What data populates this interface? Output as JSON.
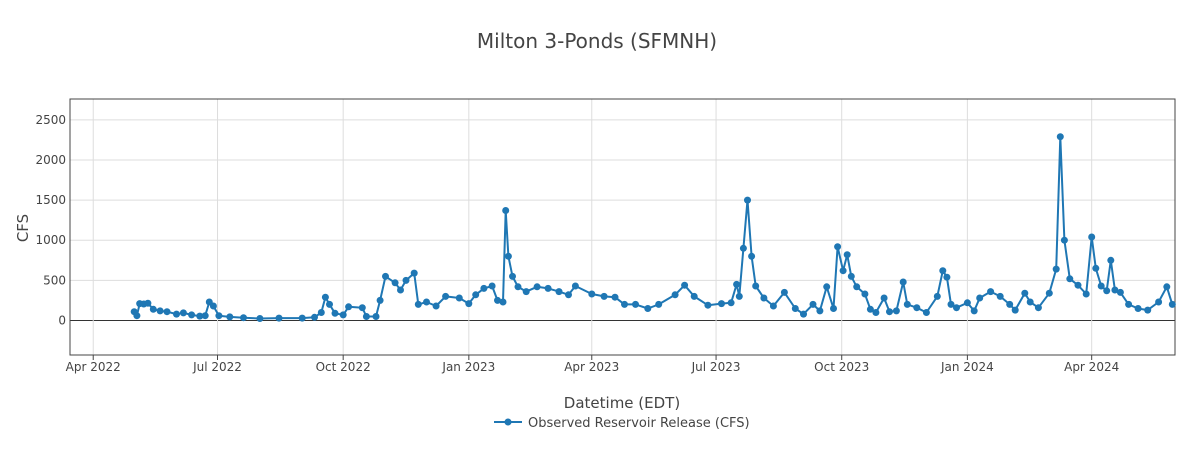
{
  "chart_data": {
    "type": "line",
    "title": "Milton 3-Ponds (SFMNH)",
    "xlabel": "Datetime (EDT)",
    "ylabel": "CFS",
    "x_ticks": [
      "Apr 2022",
      "Jul 2022",
      "Oct 2022",
      "Jan 2023",
      "Apr 2023",
      "Jul 2023",
      "Oct 2023",
      "Jan 2024",
      "Apr 2024"
    ],
    "y_ticks": [
      "0",
      "500",
      "1000",
      "1500",
      "2000",
      "2500"
    ],
    "xlim": [
      "2022-03-15",
      "2024-06-01"
    ],
    "ylim": [
      -430,
      2760
    ],
    "grid": true,
    "legend_position": "bottom-center",
    "colors": {
      "series": "#1f77b4",
      "grid": "#dddddd",
      "zero_line": "#333333",
      "frame": "#444444",
      "text": "#444444"
    },
    "series": [
      {
        "name": "Observed Reservoir Release (CFS)",
        "marker": "circle",
        "points": [
          [
            "2022-05-01",
            110
          ],
          [
            "2022-05-03",
            60
          ],
          [
            "2022-05-05",
            210
          ],
          [
            "2022-05-08",
            205
          ],
          [
            "2022-05-11",
            215
          ],
          [
            "2022-05-15",
            140
          ],
          [
            "2022-05-20",
            120
          ],
          [
            "2022-05-25",
            110
          ],
          [
            "2022-06-01",
            80
          ],
          [
            "2022-06-06",
            95
          ],
          [
            "2022-06-12",
            70
          ],
          [
            "2022-06-18",
            55
          ],
          [
            "2022-06-22",
            60
          ],
          [
            "2022-06-25",
            230
          ],
          [
            "2022-06-28",
            180
          ],
          [
            "2022-07-02",
            60
          ],
          [
            "2022-07-10",
            45
          ],
          [
            "2022-07-20",
            35
          ],
          [
            "2022-08-01",
            25
          ],
          [
            "2022-08-15",
            30
          ],
          [
            "2022-09-01",
            30
          ],
          [
            "2022-09-10",
            40
          ],
          [
            "2022-09-15",
            100
          ],
          [
            "2022-09-18",
            290
          ],
          [
            "2022-09-21",
            200
          ],
          [
            "2022-09-25",
            90
          ],
          [
            "2022-10-01",
            70
          ],
          [
            "2022-10-05",
            170
          ],
          [
            "2022-10-15",
            160
          ],
          [
            "2022-10-18",
            50
          ],
          [
            "2022-10-25",
            50
          ],
          [
            "2022-10-28",
            250
          ],
          [
            "2022-11-01",
            550
          ],
          [
            "2022-11-08",
            470
          ],
          [
            "2022-11-12",
            380
          ],
          [
            "2022-11-16",
            500
          ],
          [
            "2022-11-22",
            590
          ],
          [
            "2022-11-25",
            200
          ],
          [
            "2022-12-01",
            230
          ],
          [
            "2022-12-08",
            180
          ],
          [
            "2022-12-15",
            300
          ],
          [
            "2022-12-25",
            280
          ],
          [
            "2023-01-01",
            210
          ],
          [
            "2023-01-06",
            320
          ],
          [
            "2023-01-12",
            400
          ],
          [
            "2023-01-18",
            430
          ],
          [
            "2023-01-22",
            250
          ],
          [
            "2023-01-26",
            230
          ],
          [
            "2023-01-28",
            1370
          ],
          [
            "2023-01-30",
            800
          ],
          [
            "2023-02-02",
            550
          ],
          [
            "2023-02-06",
            420
          ],
          [
            "2023-02-12",
            360
          ],
          [
            "2023-02-20",
            420
          ],
          [
            "2023-02-28",
            400
          ],
          [
            "2023-03-08",
            360
          ],
          [
            "2023-03-15",
            320
          ],
          [
            "2023-03-20",
            430
          ],
          [
            "2023-04-01",
            330
          ],
          [
            "2023-04-10",
            300
          ],
          [
            "2023-04-18",
            290
          ],
          [
            "2023-04-25",
            200
          ],
          [
            "2023-05-03",
            200
          ],
          [
            "2023-05-12",
            150
          ],
          [
            "2023-05-20",
            200
          ],
          [
            "2023-06-01",
            320
          ],
          [
            "2023-06-08",
            440
          ],
          [
            "2023-06-15",
            300
          ],
          [
            "2023-06-25",
            190
          ],
          [
            "2023-07-05",
            210
          ],
          [
            "2023-07-12",
            220
          ],
          [
            "2023-07-16",
            450
          ],
          [
            "2023-07-18",
            300
          ],
          [
            "2023-07-21",
            900
          ],
          [
            "2023-07-24",
            1500
          ],
          [
            "2023-07-27",
            800
          ],
          [
            "2023-07-30",
            430
          ],
          [
            "2023-08-05",
            280
          ],
          [
            "2023-08-12",
            180
          ],
          [
            "2023-08-20",
            350
          ],
          [
            "2023-08-28",
            150
          ],
          [
            "2023-09-03",
            80
          ],
          [
            "2023-09-10",
            200
          ],
          [
            "2023-09-15",
            120
          ],
          [
            "2023-09-20",
            420
          ],
          [
            "2023-09-25",
            150
          ],
          [
            "2023-09-28",
            920
          ],
          [
            "2023-10-02",
            620
          ],
          [
            "2023-10-05",
            820
          ],
          [
            "2023-10-08",
            550
          ],
          [
            "2023-10-12",
            420
          ],
          [
            "2023-10-18",
            330
          ],
          [
            "2023-10-22",
            140
          ],
          [
            "2023-10-26",
            100
          ],
          [
            "2023-11-01",
            280
          ],
          [
            "2023-11-05",
            110
          ],
          [
            "2023-11-10",
            120
          ],
          [
            "2023-11-15",
            480
          ],
          [
            "2023-11-18",
            200
          ],
          [
            "2023-11-25",
            160
          ],
          [
            "2023-12-02",
            100
          ],
          [
            "2023-12-10",
            300
          ],
          [
            "2023-12-14",
            620
          ],
          [
            "2023-12-17",
            540
          ],
          [
            "2023-12-20",
            200
          ],
          [
            "2023-12-24",
            160
          ],
          [
            "2024-01-01",
            220
          ],
          [
            "2024-01-06",
            120
          ],
          [
            "2024-01-10",
            280
          ],
          [
            "2024-01-18",
            360
          ],
          [
            "2024-01-25",
            300
          ],
          [
            "2024-02-01",
            200
          ],
          [
            "2024-02-05",
            130
          ],
          [
            "2024-02-12",
            340
          ],
          [
            "2024-02-16",
            230
          ],
          [
            "2024-02-22",
            160
          ],
          [
            "2024-03-01",
            340
          ],
          [
            "2024-03-06",
            640
          ],
          [
            "2024-03-09",
            2290
          ],
          [
            "2024-03-12",
            1000
          ],
          [
            "2024-03-16",
            520
          ],
          [
            "2024-03-22",
            440
          ],
          [
            "2024-03-28",
            330
          ],
          [
            "2024-04-01",
            1040
          ],
          [
            "2024-04-04",
            650
          ],
          [
            "2024-04-08",
            430
          ],
          [
            "2024-04-12",
            370
          ],
          [
            "2024-04-15",
            750
          ],
          [
            "2024-04-18",
            380
          ],
          [
            "2024-04-22",
            350
          ],
          [
            "2024-04-28",
            200
          ],
          [
            "2024-05-05",
            150
          ],
          [
            "2024-05-12",
            130
          ],
          [
            "2024-05-20",
            230
          ],
          [
            "2024-05-26",
            420
          ],
          [
            "2024-05-30",
            200
          ]
        ]
      }
    ]
  }
}
